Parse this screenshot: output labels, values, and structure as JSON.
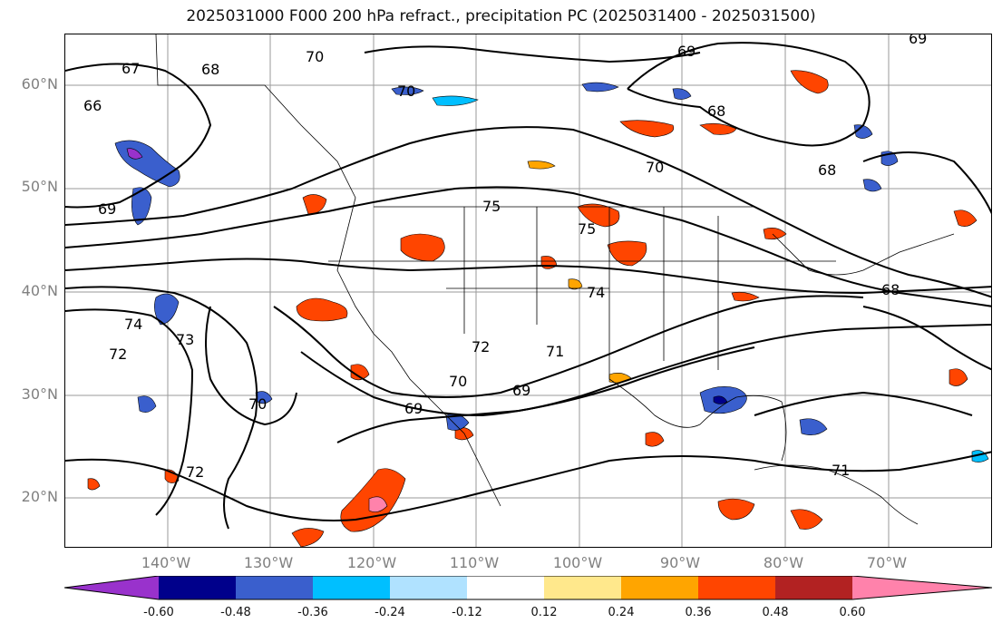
{
  "title": "2025031000 F000 200 hPa refract., precipitation PC (2025031400 - 2025031500)",
  "lat_labels": [
    "60°N",
    "50°N",
    "40°N",
    "30°N",
    "20°N"
  ],
  "lon_labels": [
    "140°W",
    "130°W",
    "120°W",
    "110°W",
    "100°W",
    "90°W",
    "80°W",
    "70°W"
  ],
  "contour_labels": [
    "67",
    "66",
    "68",
    "70",
    "70",
    "69",
    "69",
    "68",
    "70",
    "68",
    "69",
    "75",
    "75",
    "74",
    "68",
    "74",
    "72",
    "73",
    "71",
    "70",
    "72",
    "70",
    "69",
    "69",
    "72",
    "71"
  ],
  "colorbar": {
    "ticks": [
      "-0.60",
      "-0.48",
      "-0.36",
      "-0.24",
      "-0.12",
      "0.12",
      "0.24",
      "0.36",
      "0.48",
      "0.60"
    ],
    "colors": [
      "#9932cc",
      "#00008b",
      "#3a5fcd",
      "#00bfff",
      "#b0e2ff",
      "#ffffff",
      "#ffe88c",
      "#ffa500",
      "#ff4500",
      "#b22222",
      "#ff82ab"
    ]
  }
}
